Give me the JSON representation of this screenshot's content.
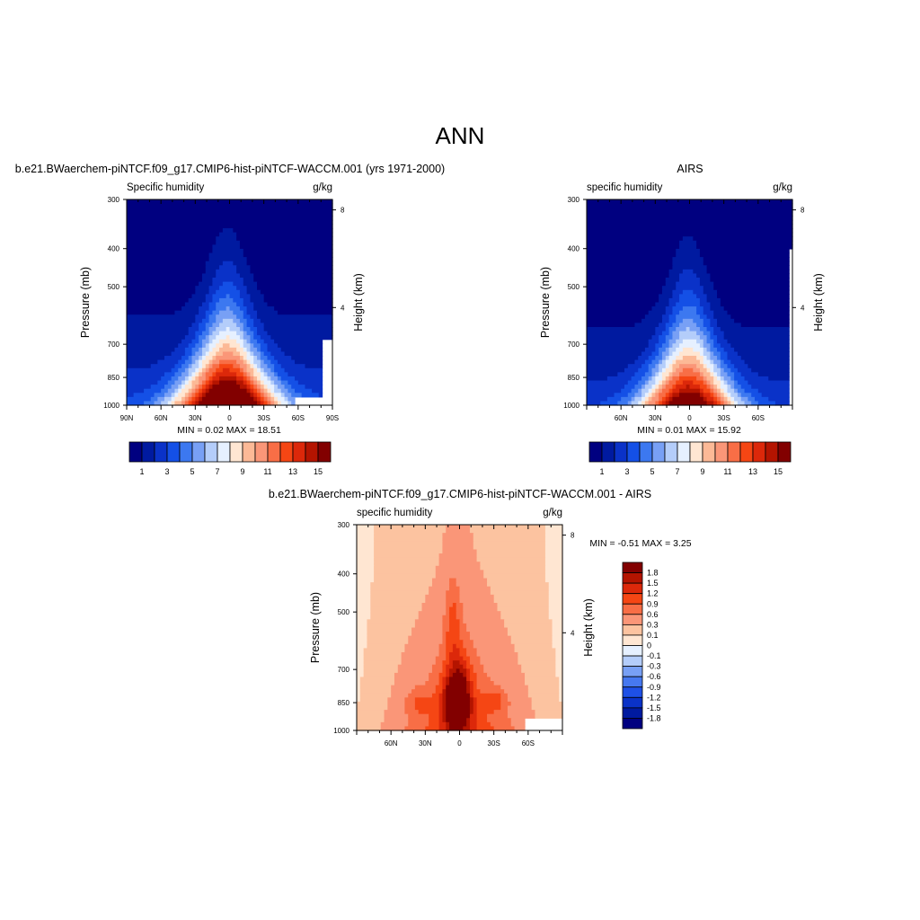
{
  "main_title": "ANN",
  "colors": {
    "abs_scale": [
      "#000080",
      "#001aa0",
      "#0a32c8",
      "#1450e6",
      "#3c78f0",
      "#78a0f5",
      "#b4cdfa",
      "#e6f0ff",
      "#ffe6d2",
      "#fcb996",
      "#fa9678",
      "#f86e46",
      "#f54614",
      "#dc280a",
      "#b41400",
      "#820000"
    ],
    "diff_scale": [
      "#000080",
      "#001aa0",
      "#0a32c8",
      "#1e50e6",
      "#4678f0",
      "#78a0f5",
      "#b4cdfa",
      "#e6f0ff",
      "#ffe6d2",
      "#fcc3a0",
      "#fa9678",
      "#f86e46",
      "#f54614",
      "#dc280a",
      "#b41400",
      "#820000"
    ]
  },
  "panels": {
    "model": {
      "title": "b.e21.BWaerchem-piNTCF.f09_g17.CMIP6-hist-piNTCF-WACCM.001 (yrs 1971-2000)",
      "left_label": "Specific humidity",
      "right_label": "g/kg",
      "ylabel": "Pressure (mb)",
      "ylabel_right": "Height (km)",
      "stats": "MIN =   0.02  MAX =  18.51"
    },
    "obs": {
      "title": "AIRS",
      "left_label": "specific humidity",
      "right_label": "g/kg",
      "ylabel": "Pressure (mb)",
      "ylabel_right": "Height (km)",
      "stats": "MIN =   0.01  MAX =  15.92"
    },
    "diff": {
      "title": "b.e21.BWaerchem-piNTCF.f09_g17.CMIP6-hist-piNTCF-WACCM.001 - AIRS",
      "left_label": "specific humidity",
      "right_label": "g/kg",
      "ylabel": "Pressure (mb)",
      "ylabel_right": "Height (km)",
      "stats": "MIN =  -0.51  MAX =   3.25"
    }
  },
  "chart_data": [
    {
      "type": "heatmap",
      "title": "b.e21.BWaerchem-piNTCF.f09_g17.CMIP6-hist-piNTCF-WACCM.001 (yrs 1971-2000)",
      "variable": "Specific humidity",
      "units": "g/kg",
      "xlabel": "",
      "ylabel": "Pressure (mb)",
      "ylabel_right": "Height (km)",
      "x_ticks": [
        "90N",
        "60N",
        "30N",
        "0",
        "30S",
        "60S",
        "90S"
      ],
      "x_tick_values": [
        90,
        60,
        30,
        0,
        -30,
        -60,
        -90
      ],
      "y_ticks": [
        300,
        400,
        500,
        700,
        850,
        1000
      ],
      "y_right_ticks": [
        8,
        4
      ],
      "xlim": [
        90,
        -90
      ],
      "ylim": [
        1000,
        300
      ],
      "levels": [
        1,
        2,
        3,
        4,
        5,
        6,
        7,
        8,
        9,
        10,
        11,
        12,
        13,
        14,
        15
      ],
      "colorbar_labels": [
        "1",
        "3",
        "5",
        "7",
        "9",
        "11",
        "13",
        "15"
      ],
      "min": 0.02,
      "max": 18.51
    },
    {
      "type": "heatmap",
      "title": "AIRS",
      "variable": "specific humidity",
      "units": "g/kg",
      "xlabel": "",
      "ylabel": "Pressure (mb)",
      "ylabel_right": "Height (km)",
      "x_ticks": [
        "60N",
        "30N",
        "0",
        "30S",
        "60S"
      ],
      "x_tick_values": [
        60,
        30,
        0,
        -30,
        -60
      ],
      "y_ticks": [
        300,
        400,
        500,
        700,
        850,
        1000
      ],
      "y_right_ticks": [
        8,
        4
      ],
      "xlim": [
        90,
        -90
      ],
      "ylim": [
        1000,
        300
      ],
      "levels": [
        1,
        2,
        3,
        4,
        5,
        6,
        7,
        8,
        9,
        10,
        11,
        12,
        13,
        14,
        15
      ],
      "colorbar_labels": [
        "1",
        "3",
        "5",
        "7",
        "9",
        "11",
        "13",
        "15"
      ],
      "min": 0.01,
      "max": 15.92
    },
    {
      "type": "heatmap",
      "title": "b.e21.BWaerchem-piNTCF.f09_g17.CMIP6-hist-piNTCF-WACCM.001 - AIRS",
      "variable": "specific humidity",
      "units": "g/kg",
      "xlabel": "",
      "ylabel": "Pressure (mb)",
      "ylabel_right": "Height (km)",
      "x_ticks": [
        "60N",
        "30N",
        "0",
        "30S",
        "60S"
      ],
      "x_tick_values": [
        60,
        30,
        0,
        -30,
        -60
      ],
      "y_ticks": [
        300,
        400,
        500,
        700,
        850,
        1000
      ],
      "y_right_ticks": [
        8,
        4
      ],
      "xlim": [
        90,
        -90
      ],
      "ylim": [
        1000,
        300
      ],
      "levels": [
        -1.8,
        -1.5,
        -1.2,
        -0.9,
        -0.6,
        -0.3,
        -0.1,
        0,
        0.1,
        0.3,
        0.6,
        0.9,
        1.2,
        1.5,
        1.8
      ],
      "colorbar_labels": [
        "1.8",
        "1.5",
        "1.2",
        "0.9",
        "0.6",
        "0.3",
        "0.1",
        "0",
        "-0.1",
        "-0.3",
        "-0.6",
        "-0.9",
        "-1.2",
        "-1.5",
        "-1.8"
      ],
      "min": -0.51,
      "max": 3.25
    }
  ]
}
